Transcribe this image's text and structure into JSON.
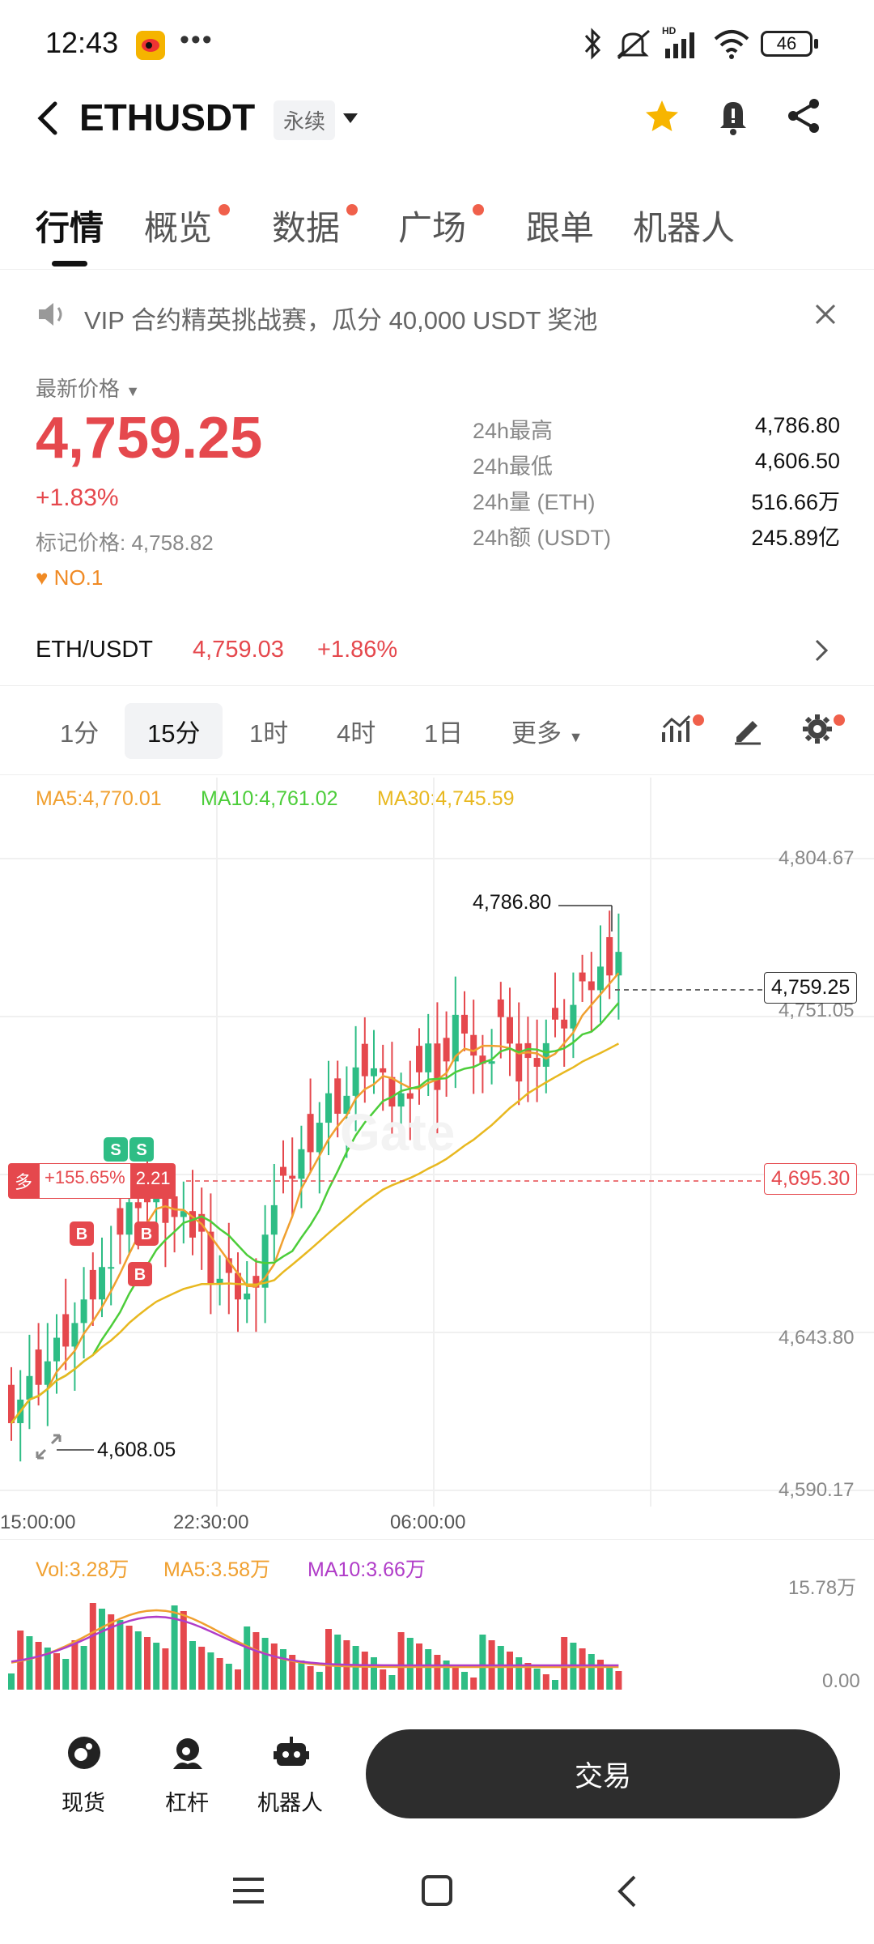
{
  "status_bar": {
    "time": "12:43",
    "battery": "46"
  },
  "header": {
    "symbol": "ETHUSDT",
    "contract_type": "永续"
  },
  "tabs": [
    {
      "label": "行情",
      "active": true,
      "dot": false
    },
    {
      "label": "概览",
      "active": false,
      "dot": true
    },
    {
      "label": "数据",
      "active": false,
      "dot": true
    },
    {
      "label": "广场",
      "active": false,
      "dot": true
    },
    {
      "label": "跟单",
      "active": false,
      "dot": false
    },
    {
      "label": "机器人",
      "active": false,
      "dot": false
    }
  ],
  "announcement": {
    "text": "VIP 合约精英挑战赛，瓜分 40,000 USDT 奖池"
  },
  "price": {
    "label": "最新价格",
    "last": "4,759.25",
    "change_pct": "+1.83%",
    "mark_label": "标记价格:",
    "mark_price": "4,758.82",
    "rank": "NO.1"
  },
  "stats": [
    {
      "label": "24h最高",
      "value": "4,786.80"
    },
    {
      "label": "24h最低",
      "value": "4,606.50"
    },
    {
      "label": "24h量 (ETH)",
      "value": "516.66万"
    },
    {
      "label": "24h额 (USDT)",
      "value": "245.89亿"
    }
  ],
  "spot_ref": {
    "pair": "ETH/USDT",
    "price": "4,759.03",
    "change": "+1.86%"
  },
  "timeframes": {
    "items": [
      "1分",
      "15分",
      "1时",
      "4时",
      "1日"
    ],
    "active": "15分",
    "more": "更多"
  },
  "indicators": {
    "ma5": "MA5:4,770.01",
    "ma10": "MA10:4,761.02",
    "ma30": "MA30:4,745.59"
  },
  "chart_data": {
    "type": "candlestick",
    "y_axis_ticks": [
      "4,804.67",
      "4,751.05",
      "4,643.80",
      "4,590.17"
    ],
    "ylim": [
      4590.17,
      4804.67
    ],
    "x_axis_ticks": [
      "15:00:00",
      "22:30:00",
      "06:00:00"
    ],
    "high_label": "4,786.80",
    "low_label": "4,608.05",
    "current_price_label": "4,759.25",
    "position_line_label": "4,695.30",
    "position": {
      "side": "多",
      "pnl": "+155.65%",
      "leverage": "2.21"
    },
    "markers": [
      "S",
      "S",
      "B",
      "B",
      "B"
    ]
  },
  "volume": {
    "vol": "Vol:3.28万",
    "ma5": "MA5:3.58万",
    "ma10": "MA10:3.66万",
    "max_tick": "15.78万",
    "min_tick": "0.00"
  },
  "colors": {
    "up": "#2ebd85",
    "down": "#e5484d",
    "ma5": "#f0a030",
    "ma10": "#4ccd3a",
    "ma30": "#e8b820",
    "vol_ma10": "#b03cc8"
  },
  "bottom_nav": {
    "items": [
      {
        "label": "现货",
        "icon": "spot-icon"
      },
      {
        "label": "杠杆",
        "icon": "margin-icon"
      },
      {
        "label": "机器人",
        "icon": "robot-icon"
      }
    ],
    "trade_button": "交易"
  }
}
